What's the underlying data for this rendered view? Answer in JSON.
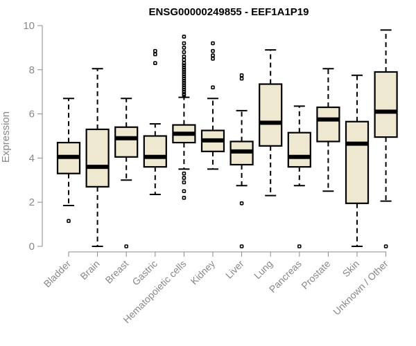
{
  "chart_data": {
    "type": "boxplot",
    "title": "ENSG00000249855 - EEF1A1P19",
    "xlabel": "",
    "ylabel": "Expression",
    "ylim": [
      0,
      10
    ],
    "yticks": [
      0,
      2,
      4,
      6,
      8,
      10
    ],
    "categories": [
      "Bladder",
      "Brain",
      "Breast",
      "Gastric",
      "Hematopoietic cells",
      "Kidney",
      "Liver",
      "Lung",
      "Pancreas",
      "Prostate",
      "Skin",
      "Unknown / Other"
    ],
    "boxes": [
      {
        "category": "Bladder",
        "whisker_low": 1.85,
        "q1": 3.3,
        "median": 4.05,
        "q3": 4.7,
        "whisker_high": 6.7,
        "outliers": [
          1.15
        ]
      },
      {
        "category": "Brain",
        "whisker_low": 0.0,
        "q1": 2.7,
        "median": 3.6,
        "q3": 5.3,
        "whisker_high": 8.05,
        "outliers": []
      },
      {
        "category": "Breast",
        "whisker_low": 3.0,
        "q1": 4.05,
        "median": 4.9,
        "q3": 5.4,
        "whisker_high": 6.7,
        "outliers": [
          0.0
        ]
      },
      {
        "category": "Gastric",
        "whisker_low": 2.35,
        "q1": 3.6,
        "median": 4.05,
        "q3": 5.0,
        "whisker_high": 5.55,
        "outliers": [
          8.3,
          8.7,
          8.85
        ]
      },
      {
        "category": "Hematopoietic cells",
        "whisker_low": 3.5,
        "q1": 4.7,
        "median": 5.1,
        "q3": 5.5,
        "whisker_high": 6.75,
        "outliers": [
          2.2,
          2.5,
          2.9,
          3.1,
          3.3,
          6.85,
          6.9,
          7.0,
          7.1,
          7.2,
          7.3,
          7.4,
          7.5,
          7.6,
          7.7,
          7.8,
          7.9,
          8.0,
          8.1,
          8.2,
          8.3,
          8.45,
          8.6,
          8.8,
          9.0,
          9.2,
          9.5
        ]
      },
      {
        "category": "Kidney",
        "whisker_low": 3.5,
        "q1": 4.3,
        "median": 4.8,
        "q3": 5.25,
        "whisker_high": 6.7,
        "outliers": [
          7.2,
          8.5,
          8.65,
          8.85,
          9.2
        ]
      },
      {
        "category": "Liver",
        "whisker_low": 2.75,
        "q1": 3.7,
        "median": 4.3,
        "q3": 4.75,
        "whisker_high": 6.15,
        "outliers": [
          0.0,
          1.95,
          7.6,
          7.75
        ]
      },
      {
        "category": "Lung",
        "whisker_low": 2.3,
        "q1": 4.55,
        "median": 5.6,
        "q3": 7.35,
        "whisker_high": 8.9,
        "outliers": []
      },
      {
        "category": "Pancreas",
        "whisker_low": 2.75,
        "q1": 3.6,
        "median": 4.05,
        "q3": 5.15,
        "whisker_high": 6.35,
        "outliers": [
          0.0
        ]
      },
      {
        "category": "Prostate",
        "whisker_low": 2.5,
        "q1": 4.75,
        "median": 5.75,
        "q3": 6.3,
        "whisker_high": 8.05,
        "outliers": []
      },
      {
        "category": "Skin",
        "whisker_low": 0.0,
        "q1": 1.95,
        "median": 4.65,
        "q3": 5.65,
        "whisker_high": 7.75,
        "outliers": []
      },
      {
        "category": "Unknown / Other",
        "whisker_low": 2.05,
        "q1": 4.95,
        "median": 6.1,
        "q3": 7.9,
        "whisker_high": 9.8,
        "outliers": [
          0.0
        ]
      }
    ],
    "colors": {
      "box_fill": "#efe8d0",
      "box_stroke": "#000000",
      "axis": "#888888"
    },
    "grid": false,
    "legend": "none"
  }
}
